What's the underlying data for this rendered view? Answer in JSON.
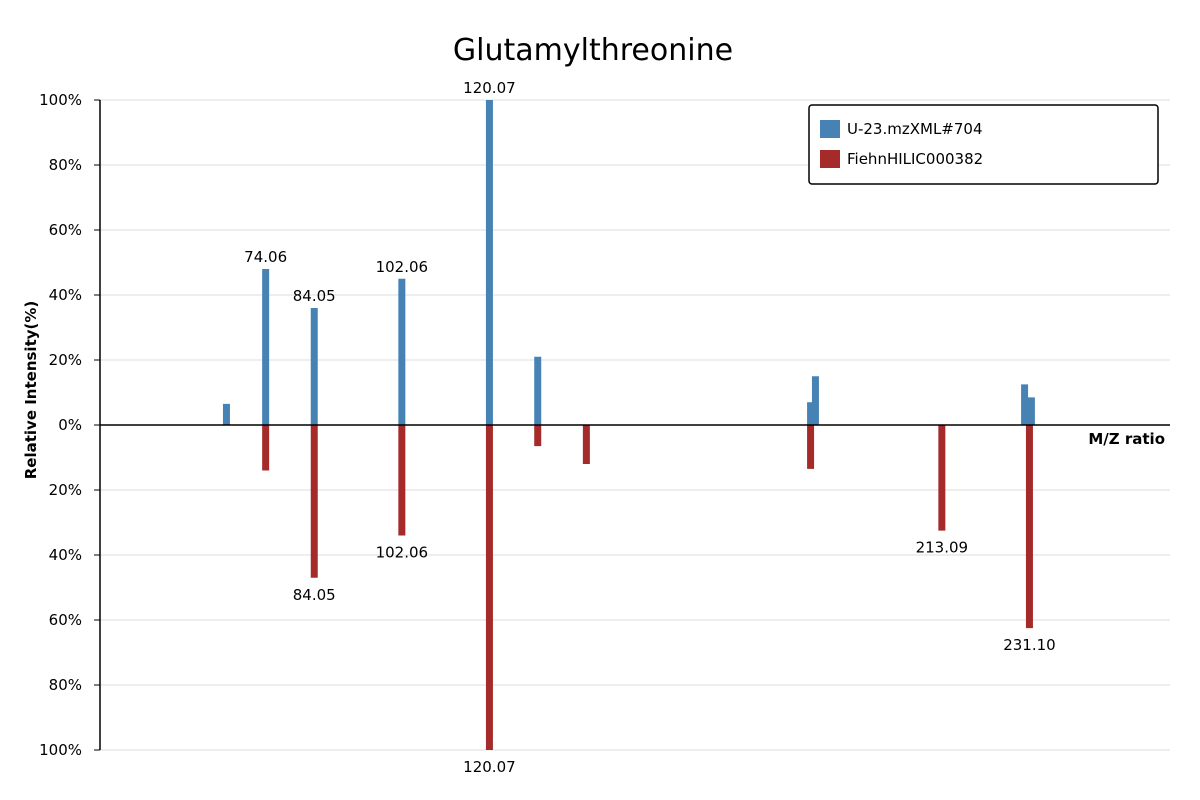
{
  "chart_data": {
    "type": "bar",
    "subtype": "mirror_spectrum",
    "title": "Glutamylthreonine",
    "xlabel": "M/Z ratio",
    "ylabel": "Relative Intensity(%)",
    "xlim": [
      40,
      260
    ],
    "ylim": [
      -100,
      100
    ],
    "y_ticks": [
      "100%",
      "80%",
      "60%",
      "40%",
      "20%",
      "0%",
      "20%",
      "40%",
      "60%",
      "80%",
      "100%"
    ],
    "grid": true,
    "legend_position": "top-right",
    "series": [
      {
        "name": "U-23.mzXML#704",
        "color": "#4682b4",
        "direction": "up",
        "peaks": [
          {
            "mz": 66.0,
            "intensity": 6.5
          },
          {
            "mz": 74.06,
            "intensity": 48,
            "label": "74.06"
          },
          {
            "mz": 84.05,
            "intensity": 36,
            "label": "84.05"
          },
          {
            "mz": 102.06,
            "intensity": 45,
            "label": "102.06"
          },
          {
            "mz": 120.07,
            "intensity": 100,
            "label": "120.07"
          },
          {
            "mz": 130.0,
            "intensity": 21
          },
          {
            "mz": 186.1,
            "intensity": 7
          },
          {
            "mz": 187.1,
            "intensity": 15
          },
          {
            "mz": 230.1,
            "intensity": 12.5
          },
          {
            "mz": 231.5,
            "intensity": 8.5
          }
        ]
      },
      {
        "name": "FiehnHILIC000382",
        "color": "#a52a2a",
        "direction": "down",
        "peaks": [
          {
            "mz": 74.06,
            "intensity": 14
          },
          {
            "mz": 84.05,
            "intensity": 47,
            "label": "84.05"
          },
          {
            "mz": 102.06,
            "intensity": 34,
            "label": "102.06"
          },
          {
            "mz": 120.07,
            "intensity": 100,
            "label": "120.07"
          },
          {
            "mz": 130.0,
            "intensity": 6.5
          },
          {
            "mz": 140.0,
            "intensity": 12
          },
          {
            "mz": 186.1,
            "intensity": 13.5
          },
          {
            "mz": 213.09,
            "intensity": 32.5,
            "label": "213.09"
          },
          {
            "mz": 231.1,
            "intensity": 62.5,
            "label": "231.10"
          }
        ]
      }
    ]
  }
}
